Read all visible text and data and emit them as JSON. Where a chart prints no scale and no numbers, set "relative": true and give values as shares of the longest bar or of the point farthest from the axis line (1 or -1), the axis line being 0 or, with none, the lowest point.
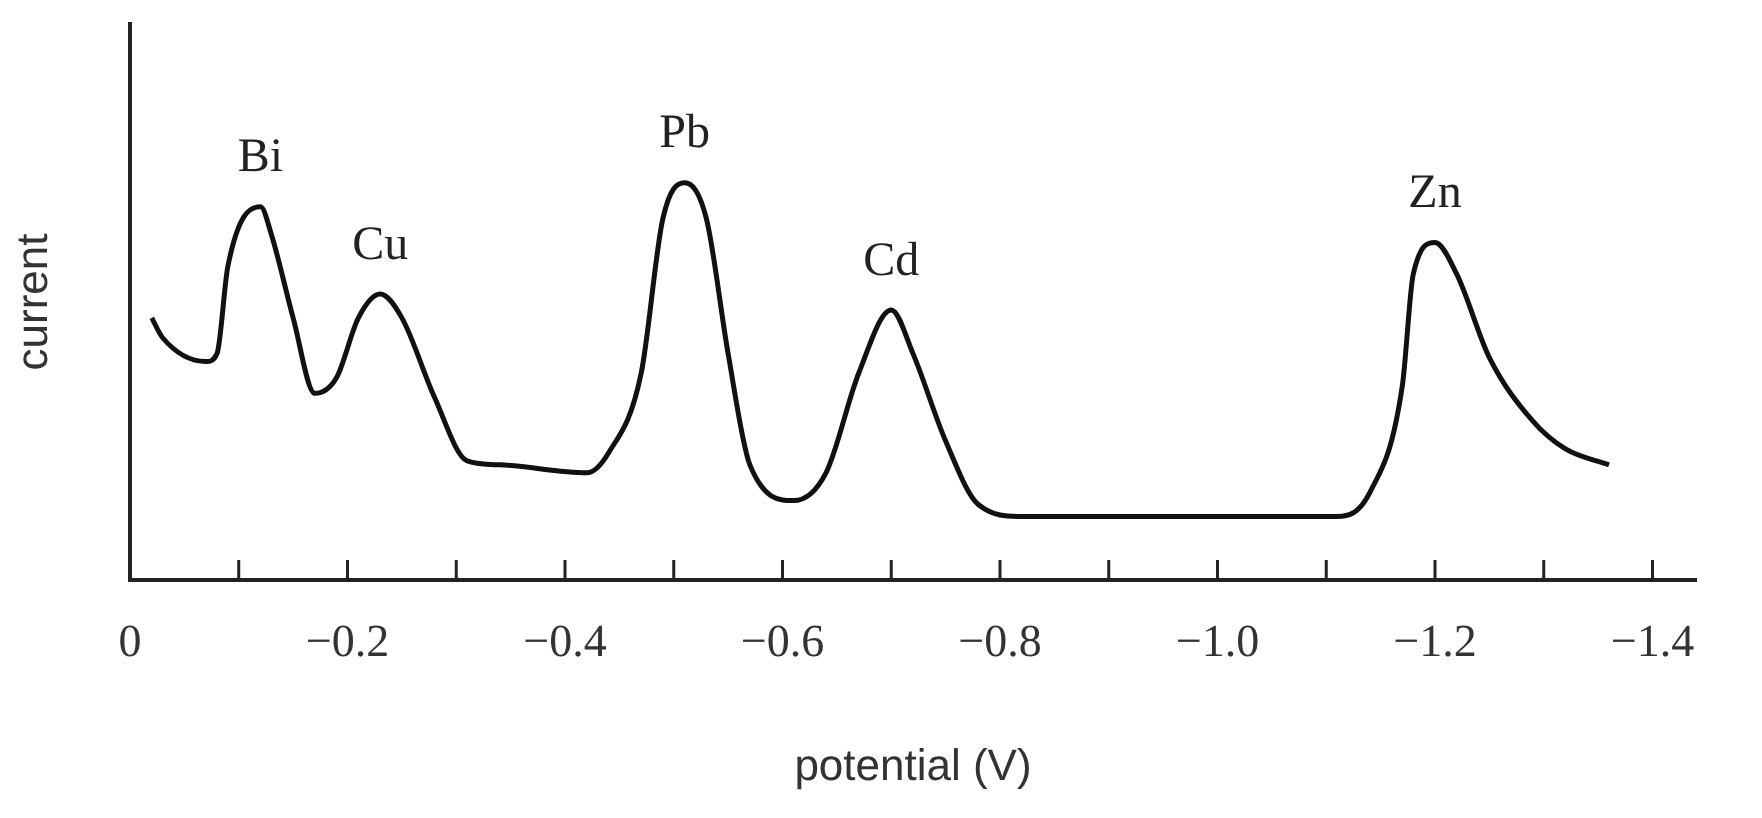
{
  "chart_data": {
    "type": "line",
    "xlabel": "potential (V)",
    "ylabel": "current",
    "relative": true,
    "xlim": [
      0,
      -1.44
    ],
    "xticks": [
      0,
      {
        "value": -0.1,
        "label": null
      },
      {
        "value": -0.2,
        "label": "−0.2"
      },
      {
        "value": -0.3,
        "label": null
      },
      {
        "value": -0.4,
        "label": "−0.4"
      },
      {
        "value": -0.5,
        "label": null
      },
      {
        "value": -0.6,
        "label": "−0.6"
      },
      {
        "value": -0.7,
        "label": null
      },
      {
        "value": -0.8,
        "label": "−0.8"
      },
      {
        "value": -0.9,
        "label": null
      },
      {
        "value": -1.0,
        "label": "−1.0"
      },
      {
        "value": -1.1,
        "label": null
      },
      {
        "value": -1.2,
        "label": "−1.2"
      },
      {
        "value": -1.3,
        "label": null
      },
      {
        "value": -1.4,
        "label": "−1.4"
      }
    ],
    "x": [
      -0.02,
      -0.03,
      -0.07,
      -0.08,
      -0.09,
      -0.12,
      -0.13,
      -0.15,
      -0.17,
      -0.19,
      -0.21,
      -0.23,
      -0.25,
      -0.28,
      -0.31,
      -0.34,
      -0.42,
      -0.44,
      -0.47,
      -0.49,
      -0.51,
      -0.53,
      -0.55,
      -0.57,
      -0.61,
      -0.64,
      -0.67,
      -0.7,
      -0.72,
      -0.75,
      -0.78,
      -0.82,
      -1.11,
      -1.14,
      -1.17,
      -1.18,
      -1.2,
      -1.22,
      -1.25,
      -1.29,
      -1.32,
      -1.36
    ],
    "series": [
      {
        "color": "#111111",
        "values": [
          0.66,
          0.61,
          0.55,
          0.57,
          0.79,
          0.94,
          0.87,
          0.66,
          0.47,
          0.51,
          0.66,
          0.72,
          0.66,
          0.46,
          0.3,
          0.29,
          0.27,
          0.32,
          0.52,
          0.91,
          1.0,
          0.91,
          0.57,
          0.29,
          0.2,
          0.27,
          0.52,
          0.68,
          0.57,
          0.35,
          0.19,
          0.16,
          0.16,
          0.22,
          0.49,
          0.77,
          0.85,
          0.77,
          0.56,
          0.4,
          0.33,
          0.29
        ]
      }
    ],
    "annotations": [
      {
        "text": "Bi",
        "x": -0.12,
        "y": 0.94
      },
      {
        "text": "Cu",
        "x": -0.23,
        "y": 0.72
      },
      {
        "text": "Pb",
        "x": -0.51,
        "y": 1.0
      },
      {
        "text": "Cd",
        "x": -0.7,
        "y": 0.68
      },
      {
        "text": "Zn",
        "x": -1.2,
        "y": 0.85
      }
    ]
  }
}
